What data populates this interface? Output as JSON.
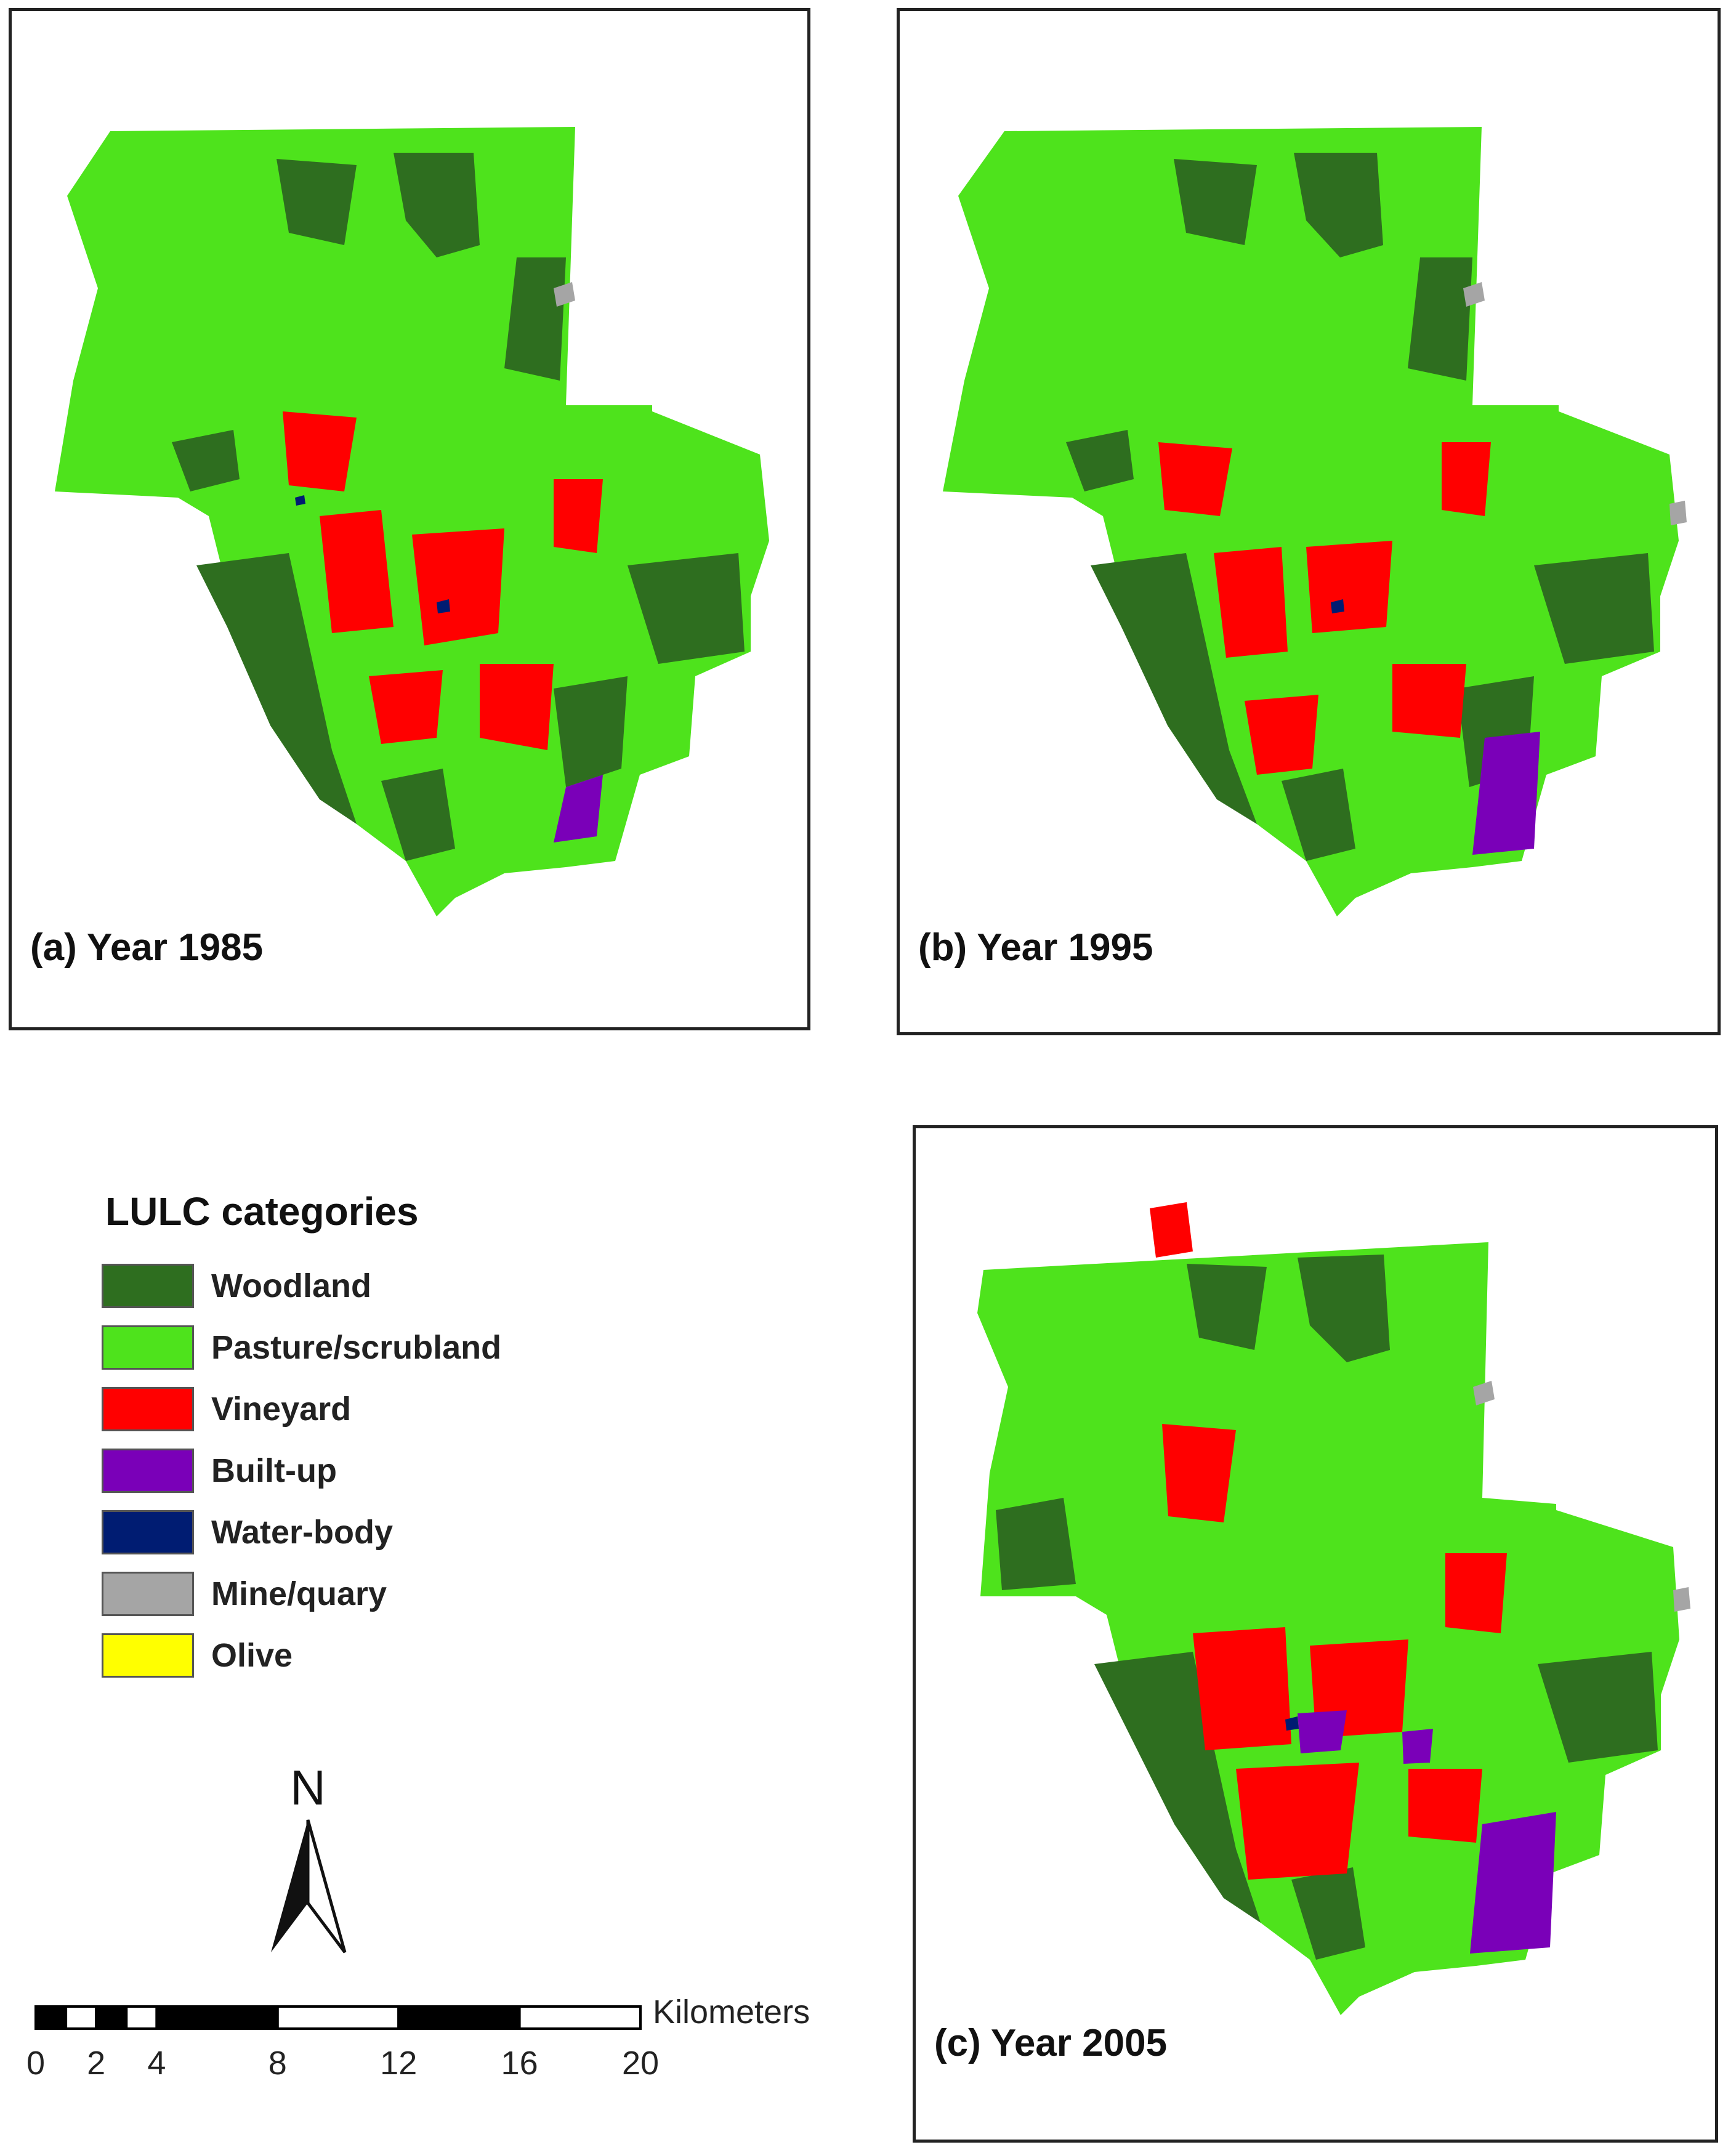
{
  "panels": [
    {
      "id": "a",
      "label": "(a) Year 1985"
    },
    {
      "id": "b",
      "label": "(b) Year 1995"
    },
    {
      "id": "c",
      "label": "(c) Year 2005"
    }
  ],
  "legend": {
    "title": "LULC categories",
    "items": [
      {
        "label": "Woodland",
        "color": "#2e6e1f"
      },
      {
        "label": "Pasture/scrubland",
        "color": "#4ee31c"
      },
      {
        "label": "Vineyard",
        "color": "#ff0000"
      },
      {
        "label": "Built-up",
        "color": "#7a00b8"
      },
      {
        "label": "Water-body",
        "color": "#001c72"
      },
      {
        "label": "Mine/quary",
        "color": "#a5a5a5"
      },
      {
        "label": "Olive",
        "color": "#ffff00"
      }
    ]
  },
  "north_arrow": {
    "label": "N"
  },
  "scale_bar": {
    "unit": "Kilometers",
    "ticks": [
      "0",
      "2",
      "4",
      "8",
      "12",
      "16",
      "20"
    ]
  }
}
